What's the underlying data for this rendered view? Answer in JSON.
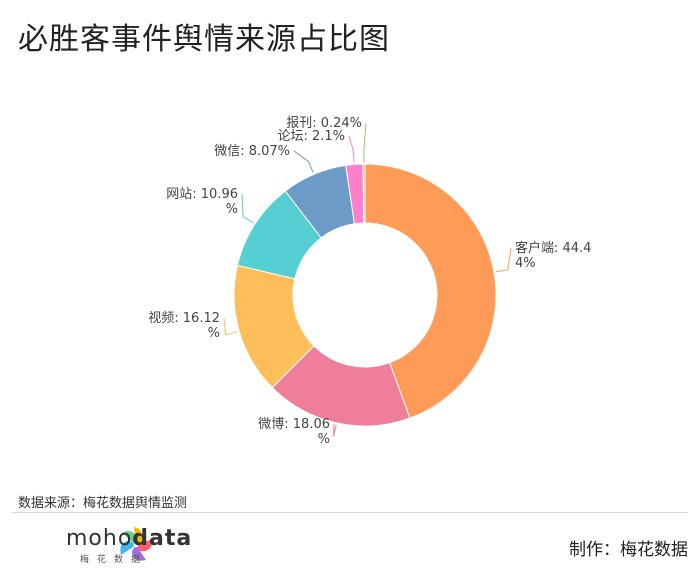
{
  "page": {
    "title": "必胜客事件舆情来源占比图"
  },
  "footer": {
    "source": "数据来源：梅花数据舆情监测",
    "brand_prefix": "moho",
    "brand_suffix": "data",
    "brand_sub": "梅花数据",
    "credit": "制作：梅花数据"
  },
  "chart_data": {
    "type": "pie",
    "donut": true,
    "title": "必胜客事件舆情来源占比图",
    "legend": "none",
    "slices": [
      {
        "name": "客户端",
        "value": 44.44,
        "color": "#FF9B57",
        "label_lines": [
          "客户端: 44.4",
          "4%"
        ]
      },
      {
        "name": "微博",
        "value": 18.06,
        "color": "#EE7E9A",
        "label_lines": [
          "微博: 18.06",
          "%"
        ]
      },
      {
        "name": "视频",
        "value": 16.12,
        "color": "#FFBE5A",
        "label_lines": [
          "视频: 16.12",
          "%"
        ]
      },
      {
        "name": "网站",
        "value": 10.96,
        "color": "#56CFD2",
        "label_lines": [
          "网站: 10.96",
          "%"
        ]
      },
      {
        "name": "微信",
        "value": 8.07,
        "color": "#6C9BC8",
        "label_lines": [
          "微信: 8.07%"
        ]
      },
      {
        "name": "论坛",
        "value": 2.1,
        "color": "#FF7FCB",
        "label_lines": [
          "论坛: 2.1%"
        ]
      },
      {
        "name": "报刊",
        "value": 0.24,
        "color": "#9BC46E",
        "label_lines": [
          "报刊: 0.24%"
        ]
      }
    ]
  }
}
